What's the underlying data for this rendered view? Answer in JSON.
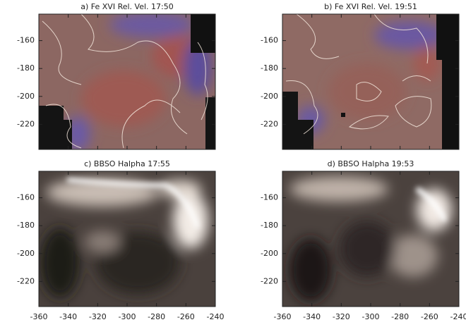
{
  "panels": [
    {
      "title": "a) Fe XVI Rel. Vel. 17:50"
    },
    {
      "title": "b) Fe XVI Rel. Vel. 19:51"
    },
    {
      "title": "c) BBSO Halpha 17:55"
    },
    {
      "title": "d) BBSO Halpha 19:53"
    }
  ],
  "xlim": [
    -360,
    -240
  ],
  "xticks": [
    -360,
    -340,
    -320,
    -300,
    -280,
    -260,
    -240
  ],
  "ylim": [
    -238,
    -141
  ],
  "yticks": [
    -160,
    -180,
    -200,
    -220
  ]
}
